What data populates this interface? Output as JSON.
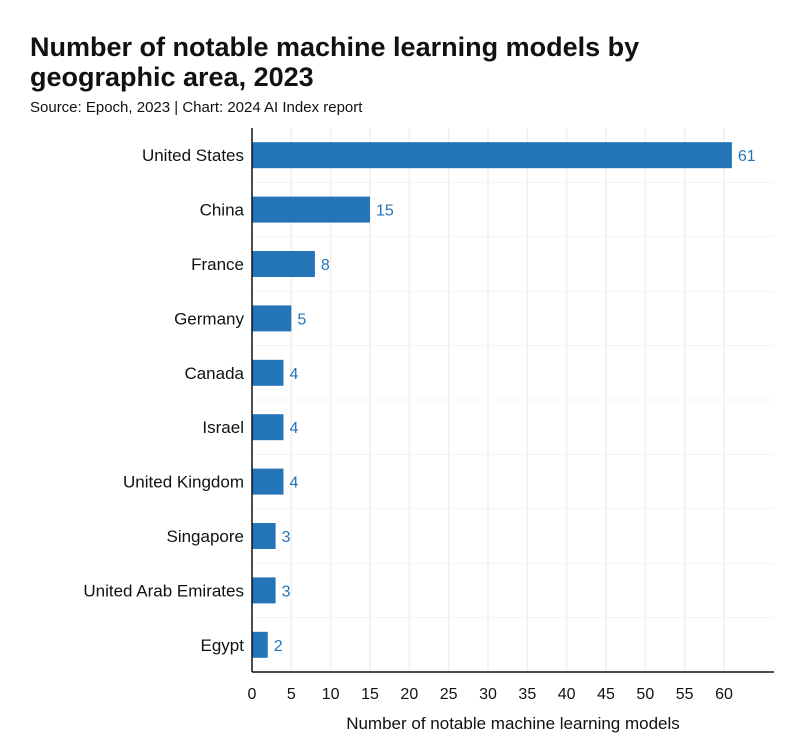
{
  "chart_data": {
    "type": "bar",
    "orientation": "horizontal",
    "title": "Number of notable machine learning models by geographic area, 2023",
    "subtitle": "Source: Epoch, 2023 | Chart: 2024 AI Index report",
    "categories": [
      "United States",
      "China",
      "France",
      "Germany",
      "Canada",
      "Israel",
      "United Kingdom",
      "Singapore",
      "United Arab Emirates",
      "Egypt"
    ],
    "values": [
      61,
      15,
      8,
      5,
      4,
      4,
      4,
      3,
      3,
      2
    ],
    "xlabel": "Number of notable machine learning models",
    "ylabel": "",
    "xlim": [
      0,
      66
    ],
    "xticks": [
      0,
      5,
      10,
      15,
      20,
      25,
      30,
      35,
      40,
      45,
      50,
      55,
      60
    ],
    "grid": true,
    "bar_color": "#2474b8",
    "label_color": "#2474b8"
  }
}
